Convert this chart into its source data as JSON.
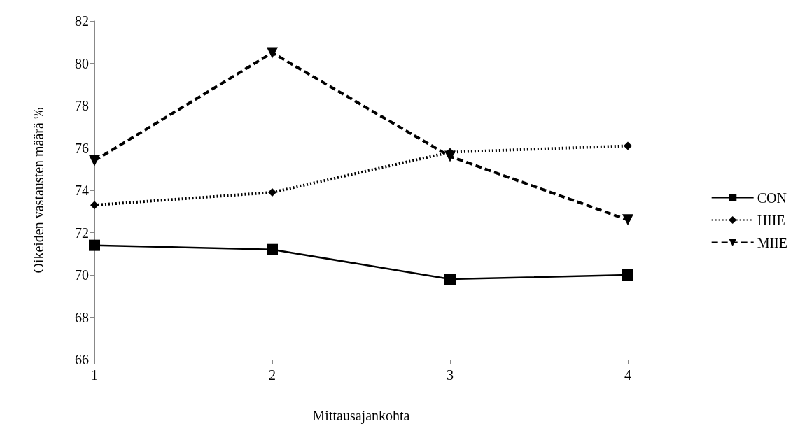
{
  "chart_data": {
    "type": "line",
    "xlabel": "Mittausajankohta",
    "ylabel": "Oikeiden vastausten määrä %",
    "categories": [
      "1",
      "2",
      "3",
      "4"
    ],
    "ylim": [
      66,
      82
    ],
    "yticks": [
      66,
      68,
      70,
      72,
      74,
      76,
      78,
      80,
      82
    ],
    "grid": false,
    "legend": "right",
    "series": [
      {
        "name": "CON",
        "color": "#000000",
        "values": [
          71.4,
          71.2,
          69.8,
          70.0
        ],
        "marker": "square",
        "line_style": "solid"
      },
      {
        "name": "HIIE",
        "color": "#000000",
        "values": [
          73.3,
          73.9,
          75.8,
          76.1
        ],
        "marker": "diamond",
        "line_style": "dotted"
      },
      {
        "name": "MIIE",
        "color": "#000000",
        "values": [
          75.4,
          80.5,
          75.6,
          72.6
        ],
        "marker": "triangle",
        "line_style": "dashed"
      }
    ]
  }
}
